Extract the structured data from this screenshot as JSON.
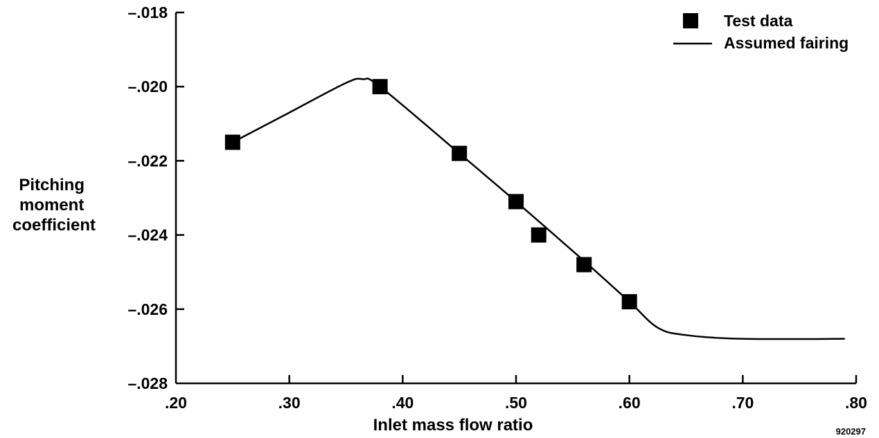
{
  "chart_data": {
    "type": "line",
    "xlabel": "Inlet mass flow ratio",
    "ylabel_lines": [
      "Pitching",
      "moment",
      "coefficient"
    ],
    "xlim": [
      0.2,
      0.8
    ],
    "ylim": [
      -0.028,
      -0.018
    ],
    "x_ticks": [
      0.2,
      0.3,
      0.4,
      0.5,
      0.6,
      0.7,
      0.8
    ],
    "x_tick_labels": [
      ".20",
      ".30",
      ".40",
      ".50",
      ".60",
      ".70",
      ".80"
    ],
    "y_ticks": [
      -0.018,
      -0.02,
      -0.022,
      -0.024,
      -0.026,
      -0.028
    ],
    "y_tick_labels": [
      "–.018",
      "–.020",
      "–.022",
      "–.024",
      "–.026",
      "–.028"
    ],
    "grid": false,
    "legend_position": "top-right",
    "series": [
      {
        "name": "Test data",
        "kind": "scatter",
        "marker": "filled-square",
        "color": "#000000",
        "points": [
          [
            0.25,
            -0.0215
          ],
          [
            0.38,
            -0.02
          ],
          [
            0.45,
            -0.0218
          ],
          [
            0.5,
            -0.0231
          ],
          [
            0.52,
            -0.024
          ],
          [
            0.56,
            -0.0248
          ],
          [
            0.6,
            -0.0258
          ]
        ]
      },
      {
        "name": "Assumed fairing",
        "kind": "line",
        "color": "#000000",
        "points": [
          [
            0.25,
            -0.0215
          ],
          [
            0.3,
            -0.0207
          ],
          [
            0.35,
            -0.0199
          ],
          [
            0.365,
            -0.0198
          ],
          [
            0.38,
            -0.02
          ],
          [
            0.45,
            -0.0218
          ],
          [
            0.5,
            -0.0231
          ],
          [
            0.56,
            -0.0247
          ],
          [
            0.6,
            -0.0258
          ],
          [
            0.625,
            -0.0265
          ],
          [
            0.65,
            -0.0267
          ],
          [
            0.7,
            -0.0268
          ],
          [
            0.79,
            -0.0268
          ]
        ]
      }
    ]
  },
  "figure_id": "920297"
}
